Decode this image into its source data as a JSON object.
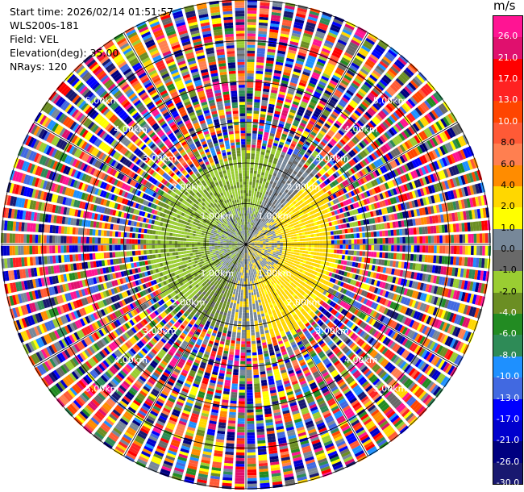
{
  "header": {
    "start_time": "Start time: 2026/02/14 01:51:57",
    "instrument": "WLS200s-181",
    "field": "Field: VEL",
    "elevation": "Elevation(deg): 35.00",
    "nrays": "NRays: 120"
  },
  "chart_data": {
    "type": "heatmap",
    "projection": "polar-ppi",
    "field": "VEL",
    "elevation_deg": 35.0,
    "nrays": 120,
    "range_max_km": 6.0,
    "range_ring_labels": [
      "1.00km",
      "2.00km",
      "3.00km",
      "4.00km",
      "5.00km"
    ],
    "rings_km": [
      1,
      2,
      3,
      4,
      5
    ],
    "colorbar": {
      "unit": "m/s",
      "labels": [
        "26.0",
        "21.0",
        "17.0",
        "13.0",
        "10.0",
        "8.0",
        "6.0",
        "4.0",
        "2.0",
        "1.0",
        "0.0",
        "-1.0",
        "-2.0",
        "-4.0",
        "-6.0",
        "-8.0",
        "-10.0",
        "-13.0",
        "-17.0",
        "-21.0",
        "-26.0",
        "-30.0"
      ],
      "colors": [
        "#ff1493",
        "#e0106e",
        "#ff0000",
        "#ff2222",
        "#ff4500",
        "#ff5a36",
        "#ff7f50",
        "#ff8c00",
        "#ffd700",
        "#ffff00",
        "#778899",
        "#696969",
        "#9acd32",
        "#6b8e23",
        "#228b22",
        "#2e8b57",
        "#1e90ff",
        "#4169e1",
        "#0000ff",
        "#0000cd",
        "#000080",
        "#191970"
      ]
    },
    "notes": "Inner region (< ~2.3 km) shows coherent radial velocity: negative (-1 to -2 m/s, greens) on west/north side, positive (2 to 4 m/s, yellow) on east/southeast side, near zero (grey) in the center/south. Beyond ~2.3 km the field is noise with random values across the full scale."
  }
}
